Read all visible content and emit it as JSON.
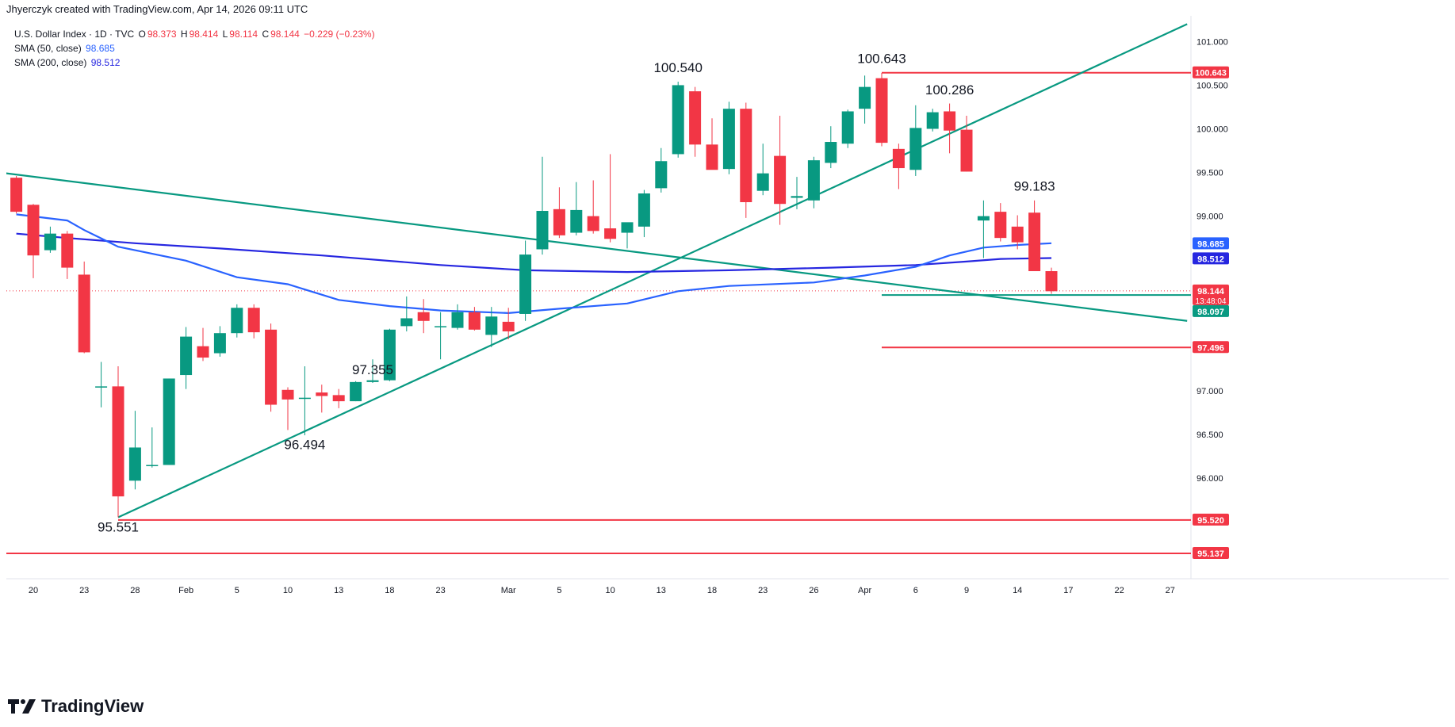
{
  "header": {
    "attribution": "Jhyerczyk created with TradingView.com, Apr 14, 2026 09:11 UTC"
  },
  "legend": {
    "symbol": "U.S. Dollar Index · 1D · TVC",
    "o_label": "O",
    "o_value": "98.373",
    "h_label": "H",
    "h_value": "98.414",
    "l_label": "L",
    "l_value": "98.114",
    "c_label": "C",
    "c_value": "98.144",
    "change": "−0.229 (−0.23%)",
    "sma50_label": "SMA (50, close)",
    "sma50_value": "98.685",
    "sma200_label": "SMA (200, close)",
    "sma200_value": "98.512"
  },
  "brand": {
    "name": "TradingView",
    "icon": "tradingview-logo-icon"
  },
  "colors": {
    "up": "#089981",
    "down": "#f23645",
    "trend": "#089981",
    "sma50": "#2962ff",
    "sma200": "#2626e0",
    "level": "#f23645"
  },
  "chart_data": {
    "type": "candlestick",
    "title": "U.S. Dollar Index · 1D · TVC",
    "y_axis": {
      "ticks": [
        96.0,
        96.5,
        97.0,
        97.5,
        98.0,
        98.5,
        99.0,
        99.5,
        100.0,
        100.5,
        101.0
      ],
      "tick_labels": [
        "96.000",
        "96.500",
        "97.000",
        "97.500",
        "98.000",
        "98.500",
        "99.000",
        "99.500",
        "100.000",
        "100.500",
        "101.000"
      ],
      "range": [
        94.9,
        101.3
      ]
    },
    "x_axis": {
      "tick_labels": [
        "20",
        "23",
        "28",
        "Feb",
        "5",
        "10",
        "13",
        "18",
        "23",
        "Mar",
        "5",
        "10",
        "13",
        "18",
        "23",
        "26",
        "Apr",
        "6",
        "9",
        "14",
        "17",
        "22",
        "27"
      ],
      "tick_index": [
        1,
        4,
        7,
        10,
        13,
        16,
        19,
        22,
        25,
        29,
        32,
        35,
        38,
        41,
        44,
        47,
        50,
        53,
        56,
        59,
        62,
        65,
        68
      ]
    },
    "candles": [
      {
        "i": 0,
        "o": 99.44,
        "h": 99.46,
        "l": 99.03,
        "c": 99.05
      },
      {
        "i": 1,
        "o": 99.13,
        "h": 99.14,
        "l": 98.29,
        "c": 98.55
      },
      {
        "i": 2,
        "o": 98.61,
        "h": 98.88,
        "l": 98.58,
        "c": 98.8
      },
      {
        "i": 3,
        "o": 98.8,
        "h": 98.83,
        "l": 98.28,
        "c": 98.41
      },
      {
        "i": 4,
        "o": 98.33,
        "h": 98.48,
        "l": 97.43,
        "c": 97.44
      },
      {
        "i": 5,
        "o": 97.04,
        "h": 97.33,
        "l": 96.81,
        "c": 97.05
      },
      {
        "i": 6,
        "o": 97.05,
        "h": 97.28,
        "l": 95.55,
        "c": 95.79
      },
      {
        "i": 7,
        "o": 95.97,
        "h": 96.77,
        "l": 95.87,
        "c": 96.35
      },
      {
        "i": 8,
        "o": 96.14,
        "h": 96.58,
        "l": 96.12,
        "c": 96.15
      },
      {
        "i": 9,
        "o": 96.15,
        "h": 97.14,
        "l": 96.15,
        "c": 97.14
      },
      {
        "i": 10,
        "o": 97.18,
        "h": 97.73,
        "l": 97.02,
        "c": 97.62
      },
      {
        "i": 11,
        "o": 97.51,
        "h": 97.72,
        "l": 97.34,
        "c": 97.38
      },
      {
        "i": 12,
        "o": 97.43,
        "h": 97.74,
        "l": 97.39,
        "c": 97.66
      },
      {
        "i": 13,
        "o": 97.66,
        "h": 97.99,
        "l": 97.61,
        "c": 97.95
      },
      {
        "i": 14,
        "o": 97.95,
        "h": 97.99,
        "l": 97.6,
        "c": 97.67
      },
      {
        "i": 15,
        "o": 97.7,
        "h": 97.77,
        "l": 96.76,
        "c": 96.84
      },
      {
        "i": 16,
        "o": 97.01,
        "h": 97.04,
        "l": 96.55,
        "c": 96.9
      },
      {
        "i": 17,
        "o": 96.92,
        "h": 97.28,
        "l": 96.49,
        "c": 96.92
      },
      {
        "i": 18,
        "o": 96.98,
        "h": 97.07,
        "l": 96.75,
        "c": 96.94
      },
      {
        "i": 19,
        "o": 96.95,
        "h": 97.02,
        "l": 96.8,
        "c": 96.88
      },
      {
        "i": 20,
        "o": 96.88,
        "h": 97.11,
        "l": 96.88,
        "c": 97.1
      },
      {
        "i": 21,
        "o": 97.1,
        "h": 97.36,
        "l": 97.09,
        "c": 97.12
      },
      {
        "i": 22,
        "o": 97.12,
        "h": 97.71,
        "l": 97.11,
        "c": 97.7
      },
      {
        "i": 23,
        "o": 97.74,
        "h": 98.08,
        "l": 97.68,
        "c": 97.83
      },
      {
        "i": 24,
        "o": 97.9,
        "h": 98.05,
        "l": 97.66,
        "c": 97.8
      },
      {
        "i": 25,
        "o": 97.74,
        "h": 97.9,
        "l": 97.36,
        "c": 97.74
      },
      {
        "i": 26,
        "o": 97.72,
        "h": 97.99,
        "l": 97.7,
        "c": 97.9
      },
      {
        "i": 27,
        "o": 97.9,
        "h": 97.96,
        "l": 97.69,
        "c": 97.7
      },
      {
        "i": 28,
        "o": 97.64,
        "h": 97.96,
        "l": 97.5,
        "c": 97.85
      },
      {
        "i": 29,
        "o": 97.79,
        "h": 97.95,
        "l": 97.59,
        "c": 97.68
      },
      {
        "i": 30,
        "o": 97.88,
        "h": 98.72,
        "l": 97.8,
        "c": 98.56
      },
      {
        "i": 31,
        "o": 98.62,
        "h": 99.68,
        "l": 98.56,
        "c": 99.06
      },
      {
        "i": 32,
        "o": 99.08,
        "h": 99.33,
        "l": 98.75,
        "c": 98.78
      },
      {
        "i": 33,
        "o": 98.81,
        "h": 99.39,
        "l": 98.78,
        "c": 99.07
      },
      {
        "i": 34,
        "o": 99.0,
        "h": 99.41,
        "l": 98.8,
        "c": 98.83
      },
      {
        "i": 35,
        "o": 98.86,
        "h": 99.71,
        "l": 98.7,
        "c": 98.74
      },
      {
        "i": 36,
        "o": 98.81,
        "h": 98.92,
        "l": 98.63,
        "c": 98.93
      },
      {
        "i": 37,
        "o": 98.88,
        "h": 99.3,
        "l": 98.76,
        "c": 99.26
      },
      {
        "i": 38,
        "o": 99.32,
        "h": 99.78,
        "l": 99.27,
        "c": 99.63
      },
      {
        "i": 39,
        "o": 99.71,
        "h": 100.54,
        "l": 99.67,
        "c": 100.5
      },
      {
        "i": 40,
        "o": 100.43,
        "h": 100.48,
        "l": 99.68,
        "c": 99.82
      },
      {
        "i": 41,
        "o": 99.82,
        "h": 100.12,
        "l": 99.54,
        "c": 99.53
      },
      {
        "i": 42,
        "o": 99.54,
        "h": 100.31,
        "l": 99.48,
        "c": 100.23
      },
      {
        "i": 43,
        "o": 100.23,
        "h": 100.3,
        "l": 98.98,
        "c": 99.16
      },
      {
        "i": 44,
        "o": 99.29,
        "h": 99.83,
        "l": 99.24,
        "c": 99.49
      },
      {
        "i": 45,
        "o": 99.69,
        "h": 100.15,
        "l": 98.9,
        "c": 99.14
      },
      {
        "i": 46,
        "o": 99.21,
        "h": 99.45,
        "l": 99.08,
        "c": 99.23
      },
      {
        "i": 47,
        "o": 99.18,
        "h": 99.68,
        "l": 99.09,
        "c": 99.64
      },
      {
        "i": 48,
        "o": 99.61,
        "h": 100.03,
        "l": 99.55,
        "c": 99.85
      },
      {
        "i": 49,
        "o": 99.83,
        "h": 100.22,
        "l": 99.78,
        "c": 100.2
      },
      {
        "i": 50,
        "o": 100.23,
        "h": 100.61,
        "l": 100.06,
        "c": 100.48
      },
      {
        "i": 51,
        "o": 100.58,
        "h": 100.64,
        "l": 99.8,
        "c": 99.84
      },
      {
        "i": 52,
        "o": 99.77,
        "h": 99.83,
        "l": 99.31,
        "c": 99.55
      },
      {
        "i": 53,
        "o": 99.53,
        "h": 100.27,
        "l": 99.46,
        "c": 100.01
      },
      {
        "i": 54,
        "o": 100.0,
        "h": 100.23,
        "l": 99.97,
        "c": 100.19
      },
      {
        "i": 55,
        "o": 100.2,
        "h": 100.29,
        "l": 99.72,
        "c": 99.98
      },
      {
        "i": 56,
        "o": 99.99,
        "h": 100.15,
        "l": 99.51,
        "c": 99.51
      },
      {
        "i": 57,
        "o": 98.95,
        "h": 99.18,
        "l": 98.52,
        "c": 99.0
      },
      {
        "i": 58,
        "o": 99.05,
        "h": 99.15,
        "l": 98.71,
        "c": 98.75
      },
      {
        "i": 59,
        "o": 98.88,
        "h": 99.01,
        "l": 98.62,
        "c": 98.7
      },
      {
        "i": 60,
        "o": 99.04,
        "h": 99.18,
        "l": 98.4,
        "c": 98.37
      },
      {
        "i": 61,
        "o": 98.37,
        "h": 98.41,
        "l": 98.11,
        "c": 98.14
      }
    ],
    "sma50": [
      [
        0,
        99.02
      ],
      [
        3,
        98.95
      ],
      [
        4,
        98.84
      ],
      [
        6,
        98.65
      ],
      [
        10,
        98.49
      ],
      [
        13,
        98.3
      ],
      [
        16,
        98.22
      ],
      [
        19,
        98.04
      ],
      [
        22,
        97.97
      ],
      [
        25,
        97.92
      ],
      [
        29,
        97.89
      ],
      [
        32,
        97.94
      ],
      [
        36,
        98.0
      ],
      [
        39,
        98.14
      ],
      [
        42,
        98.2
      ],
      [
        47,
        98.24
      ],
      [
        50,
        98.32
      ],
      [
        53,
        98.42
      ],
      [
        55,
        98.55
      ],
      [
        57,
        98.64
      ],
      [
        59,
        98.67
      ],
      [
        61,
        98.69
      ]
    ],
    "sma200": [
      [
        0,
        98.8
      ],
      [
        3,
        98.75
      ],
      [
        7,
        98.69
      ],
      [
        12,
        98.63
      ],
      [
        18,
        98.55
      ],
      [
        25,
        98.44
      ],
      [
        30,
        98.38
      ],
      [
        36,
        98.36
      ],
      [
        42,
        98.38
      ],
      [
        48,
        98.41
      ],
      [
        53,
        98.44
      ],
      [
        56,
        98.48
      ],
      [
        58,
        98.51
      ],
      [
        61,
        98.52
      ]
    ],
    "trendlines": [
      {
        "name": "descending",
        "points": [
          [
            -1,
            99.5
          ],
          [
            69,
            97.8
          ]
        ],
        "color": "#089981"
      },
      {
        "name": "ascending",
        "points": [
          [
            6,
            95.55
          ],
          [
            69,
            101.2
          ]
        ],
        "color": "#089981"
      }
    ],
    "levels": [
      {
        "value": 100.643,
        "from": 51,
        "color": "#f23645"
      },
      {
        "value": 98.097,
        "from": 51,
        "color": "#089981"
      },
      {
        "value": 97.496,
        "from": 51,
        "color": "#f23645"
      },
      {
        "value": 95.52,
        "from": 6,
        "color": "#f23645"
      },
      {
        "value": 95.137,
        "from": -1,
        "color": "#f23645"
      }
    ],
    "last_price": {
      "value": 98.144,
      "countdown": "13:48:04"
    },
    "annotations": [
      {
        "text": "95.551",
        "i": 6,
        "y": 95.551,
        "pos": "below"
      },
      {
        "text": "96.494",
        "i": 17,
        "y": 96.494,
        "pos": "below"
      },
      {
        "text": "97.355",
        "i": 21,
        "y": 97.355,
        "pos": "below"
      },
      {
        "text": "100.540",
        "i": 39,
        "y": 100.54,
        "pos": "above"
      },
      {
        "text": "100.643",
        "i": 51,
        "y": 100.643,
        "pos": "above"
      },
      {
        "text": "100.286",
        "i": 55,
        "y": 100.286,
        "pos": "above"
      },
      {
        "text": "99.183",
        "i": 60,
        "y": 99.183,
        "pos": "above"
      }
    ],
    "price_labels": [
      {
        "text": "100.643",
        "y": 100.643,
        "bg": "#f23645"
      },
      {
        "text": "98.685",
        "y": 98.685,
        "bg": "#2962ff"
      },
      {
        "text": "98.512",
        "y": 98.512,
        "bg": "#2626e0"
      },
      {
        "text": "98.144",
        "y": 98.144,
        "bg": "#f23645",
        "sub": "13:48:04"
      },
      {
        "text": "98.097",
        "y": 98.097,
        "bg": "#089981"
      },
      {
        "text": "97.496",
        "y": 97.496,
        "bg": "#f23645"
      },
      {
        "text": "95.520",
        "y": 95.52,
        "bg": "#f23645"
      },
      {
        "text": "95.137",
        "y": 95.137,
        "bg": "#f23645"
      }
    ]
  }
}
